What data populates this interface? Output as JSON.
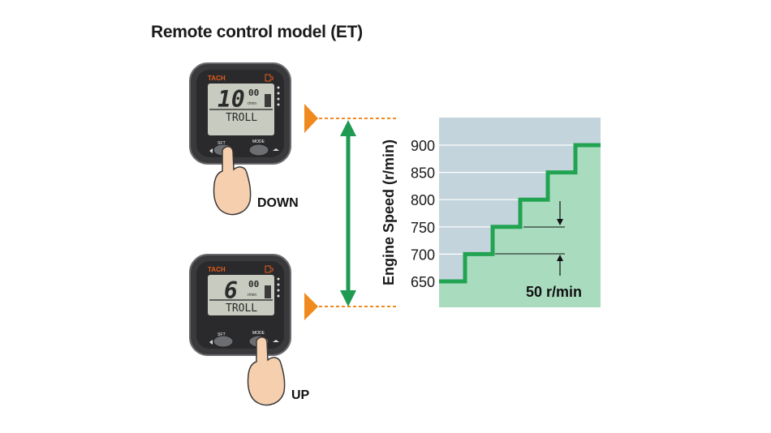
{
  "title": "Remote control model (ET)",
  "gauge_top": {
    "brand": "TACH",
    "digits": "10",
    "small_digits": "00",
    "unit": "r/min",
    "mode": "TROLL",
    "left_button": "SET",
    "right_button": "MODE",
    "pressed": "SET"
  },
  "gauge_bottom": {
    "brand": "TACH",
    "digits": "6",
    "small_digits": "00",
    "unit": "r/min",
    "mode": "TROLL",
    "left_button": "SET",
    "right_button": "MODE",
    "pressed": "MODE"
  },
  "labels": {
    "down": "DOWN",
    "up": "UP"
  },
  "colors": {
    "arrow": "#1f9a52",
    "marker": "#f08a1e",
    "sky": "#c4d4dd",
    "fill": "#a9dcbf",
    "line": "#22a352"
  },
  "chart_data": {
    "type": "line",
    "step": true,
    "ylabel": "Engine Speed (r/min)",
    "y_ticks": [
      "900",
      "850",
      "800",
      "750",
      "700",
      "650"
    ],
    "ylim": [
      650,
      900
    ],
    "values": [
      650,
      700,
      750,
      800,
      850,
      900
    ],
    "annotation": "50 r/min"
  }
}
